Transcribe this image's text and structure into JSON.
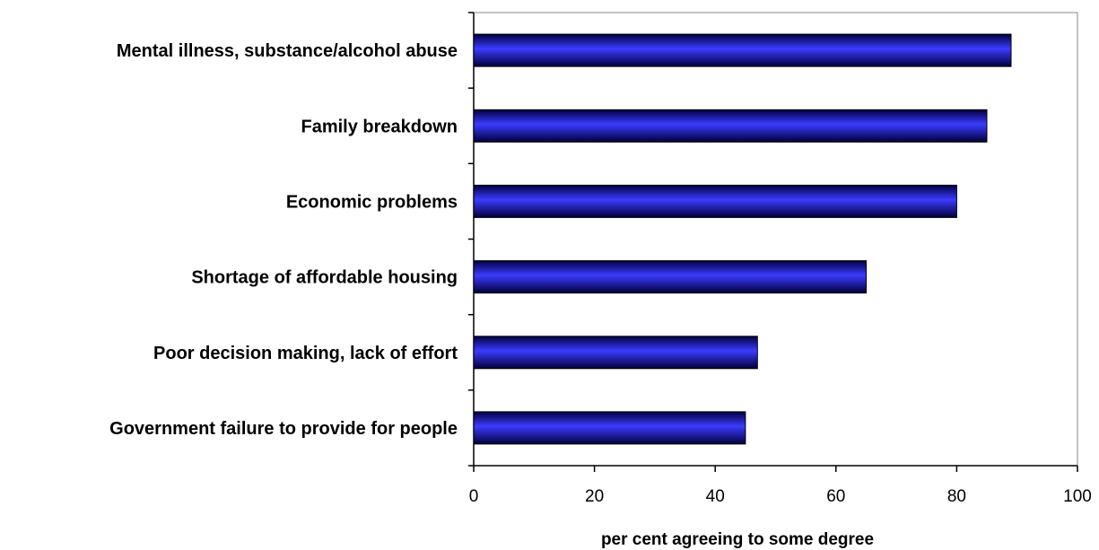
{
  "chart_data": {
    "type": "bar",
    "orientation": "horizontal",
    "categories": [
      "Mental illness, substance/alcohol abuse",
      "Family breakdown",
      "Economic problems",
      "Shortage of affordable housing",
      "Poor decision making, lack of effort",
      "Government failure to provide for people"
    ],
    "values": [
      89,
      85,
      80,
      65,
      47,
      45
    ],
    "xlabel": "per cent agreeing to some degree",
    "ylabel": "",
    "title": "",
    "xlim": [
      0,
      100
    ],
    "xticks": [
      0,
      20,
      40,
      60,
      80,
      100
    ],
    "grid": false,
    "legend": "none",
    "colors": {
      "bar_light": "#3b3bff",
      "bar_dark": "#000040"
    }
  }
}
